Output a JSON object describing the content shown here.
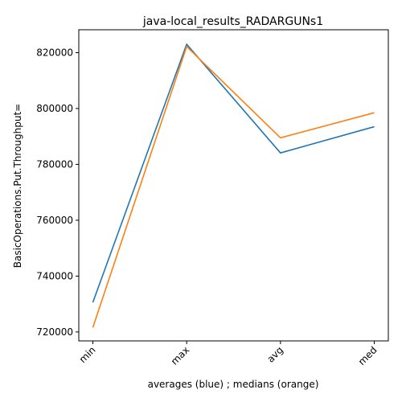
{
  "chart_data": {
    "type": "line",
    "title": "java-local_results_RADARGUNs1",
    "xlabel": "averages (blue) ; medians (orange)",
    "ylabel": "BasicOperations.Put.Throughput=",
    "categories": [
      "min",
      "max",
      "avg",
      "med"
    ],
    "ylim": [
      716800,
      828200
    ],
    "yticks": [
      720000,
      740000,
      760000,
      780000,
      800000,
      820000
    ],
    "ytick_labels": [
      "720000",
      "740000",
      "760000",
      "780000",
      "800000",
      "820000"
    ],
    "grid": false,
    "series": [
      {
        "color": "#1f77b4",
        "values": [
          730600,
          823000,
          784100,
          793500
        ]
      },
      {
        "color": "#ff7f0e",
        "values": [
          721600,
          822200,
          789500,
          798500
        ]
      }
    ]
  }
}
